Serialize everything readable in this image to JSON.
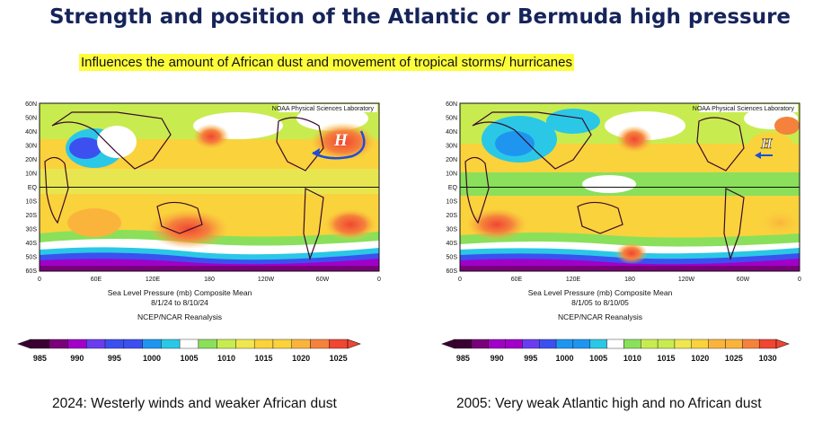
{
  "title": "Strength and position of the Atlantic or Bermuda high pressure",
  "subtitle": "Influences the amount of African dust and movement of tropical storms/ hurricanes",
  "maps": [
    {
      "credit": "NOAA Physical Sciences Laboratory",
      "lat_labels": [
        "60N",
        "50N",
        "40N",
        "30N",
        "20N",
        "10N",
        "EQ",
        "10S",
        "20S",
        "30S",
        "40S",
        "50S",
        "60S"
      ],
      "lon_labels": [
        "0",
        "60E",
        "120E",
        "180",
        "120W",
        "60W",
        "0"
      ],
      "footer_line1": "Sea Level Pressure (mb) Composite Mean",
      "footer_line2": "8/1/24  to 8/10/24",
      "footer_line3": "NCEP/NCAR Reanalysis",
      "high_label": "H",
      "colorbar_labels": [
        "985",
        "990",
        "995",
        "1000",
        "1005",
        "1010",
        "1015",
        "1020",
        "1025"
      ],
      "caption": "2024: Westerly winds and weaker African dust"
    },
    {
      "credit": "NOAA Physical Sciences Laboratory",
      "lat_labels": [
        "60N",
        "50N",
        "40N",
        "30N",
        "20N",
        "10N",
        "EQ",
        "10S",
        "20S",
        "30S",
        "40S",
        "50S",
        "60S"
      ],
      "lon_labels": [
        "0",
        "60E",
        "120E",
        "180",
        "120W",
        "60W",
        "0"
      ],
      "footer_line1": "Sea Level Pressure (mb) Composite Mean",
      "footer_line2": "8/1/05  to 8/10/05",
      "footer_line3": "NCEP/NCAR Reanalysis",
      "high_label": "H",
      "colorbar_labels": [
        "985",
        "990",
        "995",
        "1000",
        "1005",
        "1010",
        "1015",
        "1020",
        "1025",
        "1030"
      ],
      "caption": "2005: Very weak Atlantic high and no African dust"
    }
  ],
  "colors": {
    "title": "#16245a",
    "highlight": "#fdfd3a",
    "arrow": "#1c4fd8",
    "ramp": [
      "#3a0033",
      "#7a007a",
      "#a000c8",
      "#6a3cf0",
      "#3c50f0",
      "#1e96f0",
      "#2ac8e6",
      "#ffffff",
      "#8ae05a",
      "#c8ec50",
      "#f0e650",
      "#fad23c",
      "#fab43c",
      "#f5823c",
      "#f04632"
    ]
  }
}
